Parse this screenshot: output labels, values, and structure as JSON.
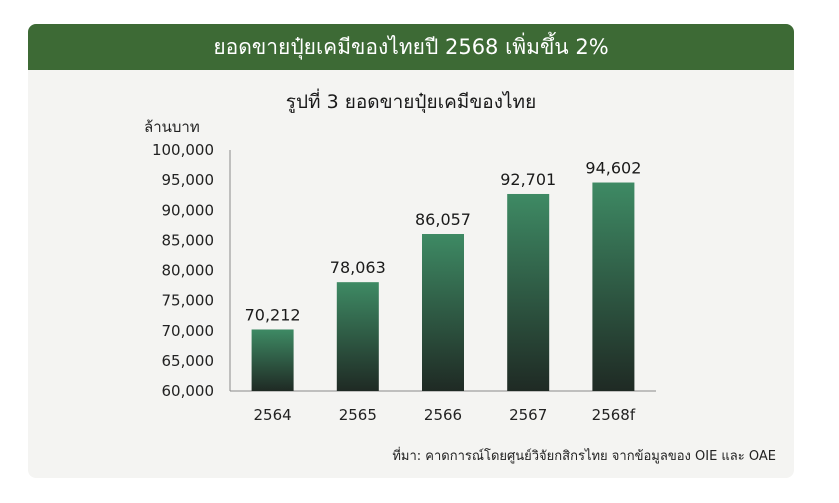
{
  "banner": {
    "title": "ยอดขายปุ๋ยเคมีของไทยปี 2568 เพิ่มขึ้น 2%"
  },
  "source": {
    "text": "ที่มา: คาดการณ์โดยศูนย์วิจัยกสิกรไทย จากข้อมูลของ OIE และ OAE"
  },
  "colors": {
    "banner": "#3d6a35",
    "bar_top": "#3e8a64",
    "bar_bottom": "#1f2a24"
  },
  "chart_data": {
    "type": "bar",
    "title": "รูปที่ 3 ยอดขายปุ๋ยเคมีของไทย",
    "ylabel": "ล้านบาท",
    "xlabel": "",
    "categories": [
      "2564",
      "2565",
      "2566",
      "2567",
      "2568f"
    ],
    "values": [
      70212,
      78063,
      86057,
      92701,
      94602
    ],
    "value_labels": [
      "70,212",
      "78,063",
      "86,057",
      "92,701",
      "94,602"
    ],
    "ylim": [
      60000,
      100000
    ],
    "yticks": [
      60000,
      65000,
      70000,
      75000,
      80000,
      85000,
      90000,
      95000,
      100000
    ],
    "ytick_labels": [
      "60,000",
      "65,000",
      "70,000",
      "75,000",
      "80,000",
      "85,000",
      "90,000",
      "95,000",
      "100,000"
    ],
    "grid": false,
    "legend": "none"
  }
}
